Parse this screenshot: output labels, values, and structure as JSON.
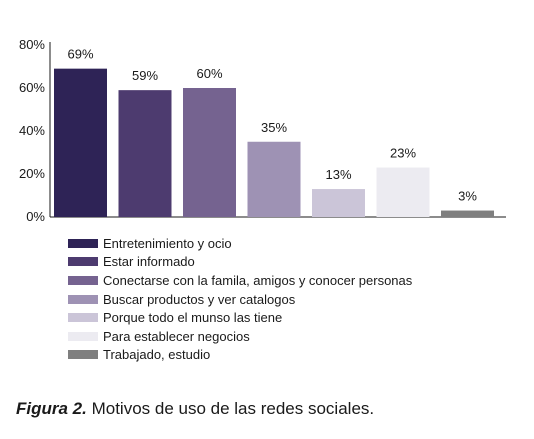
{
  "chart_data": {
    "type": "bar",
    "categories": [
      "Entretenimiento y ocio",
      "Estar informado",
      "Conectarse con la famila, amigos y conocer personas",
      "Buscar productos y ver catalogos",
      "Porque todo el munso las tiene",
      "Para establecer negocios",
      "Trabajado, estudio"
    ],
    "values": [
      69,
      59,
      60,
      35,
      13,
      23,
      3
    ],
    "data_labels": [
      "69%",
      "59%",
      "60%",
      "35%",
      "13%",
      "23%",
      "3%"
    ],
    "colors": [
      "#2e2356",
      "#4d3b6f",
      "#756390",
      "#9e92b4",
      "#cbc5d8",
      "#ecebf1",
      "#7f7f7f"
    ],
    "ylim": [
      0,
      80
    ],
    "yticks": [
      0,
      20,
      40,
      60,
      80
    ],
    "ytick_labels": [
      "0%",
      "20%",
      "40%",
      "60%",
      "80%"
    ],
    "grid": false,
    "legend_position": "bottom"
  },
  "caption": {
    "label": "Figura 2.",
    "text": " Motivos de uso de las redes sociales."
  }
}
